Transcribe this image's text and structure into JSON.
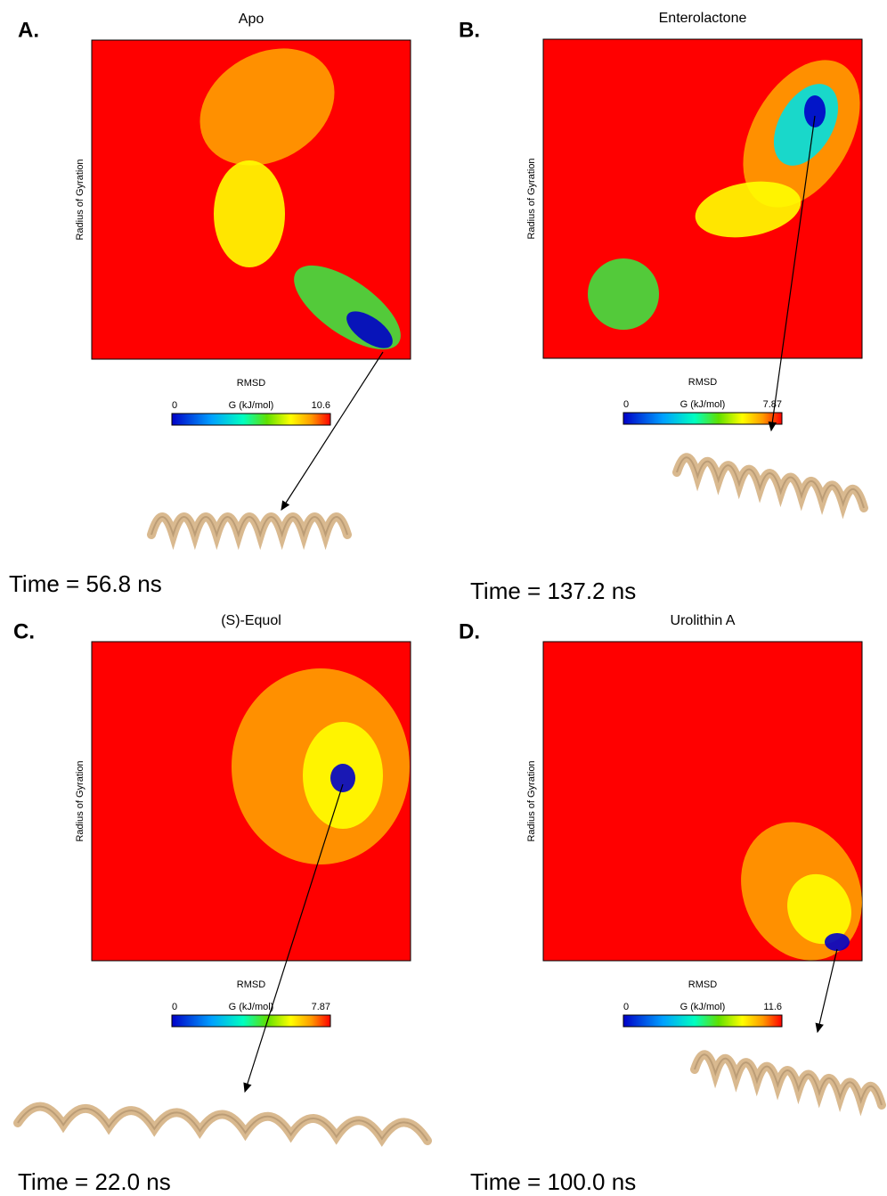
{
  "panels": [
    {
      "label": "A.",
      "title": "Apo",
      "xlabel": "RMSD",
      "ylabel": "Radius of Gyration",
      "colorbar": {
        "title": "G (kJ/mol)",
        "min": 0,
        "max": 10.6
      },
      "time": "Time = 56.8 ns"
    },
    {
      "label": "B.",
      "title": "Enterolactone",
      "xlabel": "RMSD",
      "ylabel": "Radius of Gyration",
      "colorbar": {
        "title": "G (kJ/mol)",
        "min": 0,
        "max": 7.87
      },
      "time": "Time = 137.2 ns"
    },
    {
      "label": "C.",
      "title": "(S)-Equol",
      "xlabel": "RMSD",
      "ylabel": "Radius of Gyration",
      "colorbar": {
        "title": "G (kJ/mol)",
        "min": 0,
        "max": 7.87
      },
      "time": "Time = 22.0 ns"
    },
    {
      "label": "D.",
      "title": "Urolithin A",
      "xlabel": "RMSD",
      "ylabel": "Radius of Gyration",
      "colorbar": {
        "title": "G (kJ/mol)",
        "min": 0,
        "max": 11.6
      },
      "time": "Time = 100.0 ns"
    }
  ]
}
